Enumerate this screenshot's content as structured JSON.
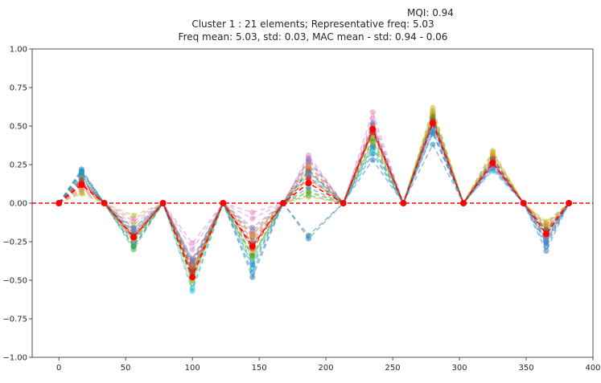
{
  "chart_data": {
    "type": "line",
    "mqi_label": "MQI: 0.94",
    "title": "Cluster 1 : 21 elements; Representative freq: 5.03",
    "subtitle": "Freq mean: 5.03, std: 0.03, MAC mean - std: 0.94 - 0.06",
    "xlabel": "",
    "ylabel": "",
    "xlim": [
      -20,
      400
    ],
    "ylim": [
      -1.0,
      1.0
    ],
    "x_ticks": [
      0,
      50,
      100,
      150,
      200,
      250,
      300,
      350,
      400
    ],
    "y_ticks": [
      -1.0,
      -0.75,
      -0.5,
      -0.25,
      0.0,
      0.25,
      0.5,
      0.75,
      1.0
    ],
    "y_tick_labels": [
      "−1.00",
      "−0.75",
      "−0.50",
      "−0.25",
      "0.00",
      "0.25",
      "0.50",
      "0.75",
      "1.00"
    ],
    "grid": false,
    "legend": "none",
    "x": [
      0,
      17,
      34,
      56,
      78,
      100,
      123,
      145,
      168,
      187,
      213,
      235,
      258,
      280,
      303,
      325,
      348,
      365,
      382
    ],
    "zero_line": {
      "y": 0.0,
      "color": "#ff0000"
    },
    "representative": {
      "color": "#ff0000",
      "values": [
        0,
        0.12,
        0,
        -0.22,
        0,
        -0.48,
        0,
        -0.28,
        0,
        0.13,
        0,
        0.48,
        0,
        0.52,
        0,
        0.26,
        0,
        -0.2,
        0
      ]
    },
    "series": [
      {
        "color": "#1f77b4",
        "values": [
          0,
          0.22,
          0,
          -0.28,
          0,
          -0.4,
          0,
          -0.48,
          0,
          -0.23,
          0,
          0.28,
          0,
          0.38,
          0,
          0.24,
          0,
          -0.31,
          0
        ]
      },
      {
        "color": "#1f77b4",
        "values": [
          0,
          0.21,
          0,
          -0.25,
          0,
          -0.38,
          0,
          -0.45,
          0,
          -0.21,
          0,
          0.32,
          0,
          0.45,
          0,
          0.26,
          0,
          -0.28,
          0
        ]
      },
      {
        "color": "#ff7f0e",
        "values": [
          0,
          0.1,
          0,
          -0.2,
          0,
          -0.45,
          0,
          -0.22,
          0,
          0.15,
          0,
          0.45,
          0,
          0.6,
          0,
          0.33,
          0,
          -0.13,
          0
        ]
      },
      {
        "color": "#2ca02c",
        "values": [
          0,
          0.14,
          0,
          -0.3,
          0,
          -0.5,
          0,
          -0.35,
          0,
          0.05,
          0,
          0.4,
          0,
          0.58,
          0,
          0.28,
          0,
          -0.18,
          0
        ]
      },
      {
        "color": "#d62728",
        "values": [
          0,
          0.13,
          0,
          -0.23,
          0,
          -0.46,
          0,
          -0.3,
          0,
          0.16,
          0,
          0.46,
          0,
          0.54,
          0,
          0.27,
          0,
          -0.21,
          0
        ]
      },
      {
        "color": "#9467bd",
        "values": [
          0,
          0.15,
          0,
          -0.18,
          0,
          -0.4,
          0,
          -0.2,
          0,
          0.25,
          0,
          0.5,
          0,
          0.5,
          0,
          0.24,
          0,
          -0.24,
          0
        ]
      },
      {
        "color": "#8c564b",
        "values": [
          0,
          0.16,
          0,
          -0.2,
          0,
          -0.42,
          0,
          -0.24,
          0,
          0.22,
          0,
          0.48,
          0,
          0.55,
          0,
          0.3,
          0,
          -0.17,
          0
        ]
      },
      {
        "color": "#e377c2",
        "values": [
          0,
          0.08,
          0,
          -0.1,
          0,
          -0.26,
          0,
          -0.06,
          0,
          0.31,
          0,
          0.59,
          0,
          0.52,
          0,
          0.25,
          0,
          -0.14,
          0
        ]
      },
      {
        "color": "#e377c2",
        "values": [
          0,
          0.09,
          0,
          -0.12,
          0,
          -0.3,
          0,
          -0.1,
          0,
          0.28,
          0,
          0.55,
          0,
          0.5,
          0,
          0.23,
          0,
          -0.16,
          0
        ]
      },
      {
        "color": "#7f7f7f",
        "values": [
          0,
          0.18,
          0,
          -0.22,
          0,
          -0.36,
          0,
          -0.18,
          0,
          0.27,
          0,
          0.51,
          0,
          0.56,
          0,
          0.29,
          0,
          -0.19,
          0
        ]
      },
      {
        "color": "#7f7f7f",
        "values": [
          0,
          0.17,
          0,
          -0.24,
          0,
          -0.39,
          0,
          -0.26,
          0,
          0.2,
          0,
          0.47,
          0,
          0.53,
          0,
          0.28,
          0,
          -0.22,
          0
        ]
      },
      {
        "color": "#bcbd22",
        "values": [
          0,
          0.06,
          0,
          -0.08,
          0,
          -0.52,
          0,
          -0.36,
          0,
          0.04,
          0,
          0.38,
          0,
          0.62,
          0,
          0.34,
          0,
          -0.12,
          0
        ]
      },
      {
        "color": "#bcbd22",
        "values": [
          0,
          0.07,
          0,
          -0.14,
          0,
          -0.5,
          0,
          -0.33,
          0,
          0.08,
          0,
          0.41,
          0,
          0.59,
          0,
          0.32,
          0,
          -0.14,
          0
        ]
      },
      {
        "color": "#17becf",
        "values": [
          0,
          0.2,
          0,
          -0.26,
          0,
          -0.57,
          0,
          -0.42,
          0,
          0.2,
          0,
          0.34,
          0,
          0.47,
          0,
          0.22,
          0,
          -0.25,
          0
        ]
      },
      {
        "color": "#17becf",
        "values": [
          0,
          0.19,
          0,
          -0.19,
          0,
          -0.55,
          0,
          -0.38,
          0,
          0.18,
          0,
          0.36,
          0,
          0.49,
          0,
          0.21,
          0,
          -0.23,
          0
        ]
      },
      {
        "color": "#1f77b4",
        "values": [
          0,
          0.2,
          0,
          -0.16,
          0,
          -0.44,
          0,
          -0.4,
          0,
          0.1,
          0,
          0.37,
          0,
          0.46,
          0,
          0.25,
          0,
          -0.26,
          0
        ]
      },
      {
        "color": "#ff7f0e",
        "values": [
          0,
          0.11,
          0,
          -0.24,
          0,
          -0.41,
          0,
          -0.21,
          0,
          0.24,
          0,
          0.49,
          0,
          0.57,
          0,
          0.31,
          0,
          -0.15,
          0
        ]
      },
      {
        "color": "#2ca02c",
        "values": [
          0,
          0.12,
          0,
          -0.28,
          0,
          -0.47,
          0,
          -0.34,
          0,
          0.07,
          0,
          0.42,
          0,
          0.56,
          0,
          0.27,
          0,
          -0.17,
          0
        ]
      },
      {
        "color": "#9467bd",
        "values": [
          0,
          0.14,
          0,
          -0.17,
          0,
          -0.37,
          0,
          -0.16,
          0,
          0.29,
          0,
          0.52,
          0,
          0.51,
          0,
          0.23,
          0,
          -0.24,
          0
        ]
      },
      {
        "color": "#8c564b",
        "values": [
          0,
          0.15,
          0,
          -0.21,
          0,
          -0.43,
          0,
          -0.27,
          0,
          0.21,
          0,
          0.47,
          0,
          0.54,
          0,
          0.29,
          0,
          -0.18,
          0
        ]
      },
      {
        "color": "#d62728",
        "values": [
          0,
          0.13,
          0,
          -0.22,
          0,
          -0.45,
          0,
          -0.29,
          0,
          0.17,
          0,
          0.46,
          0,
          0.53,
          0,
          0.26,
          0,
          -0.2,
          0
        ]
      }
    ]
  }
}
